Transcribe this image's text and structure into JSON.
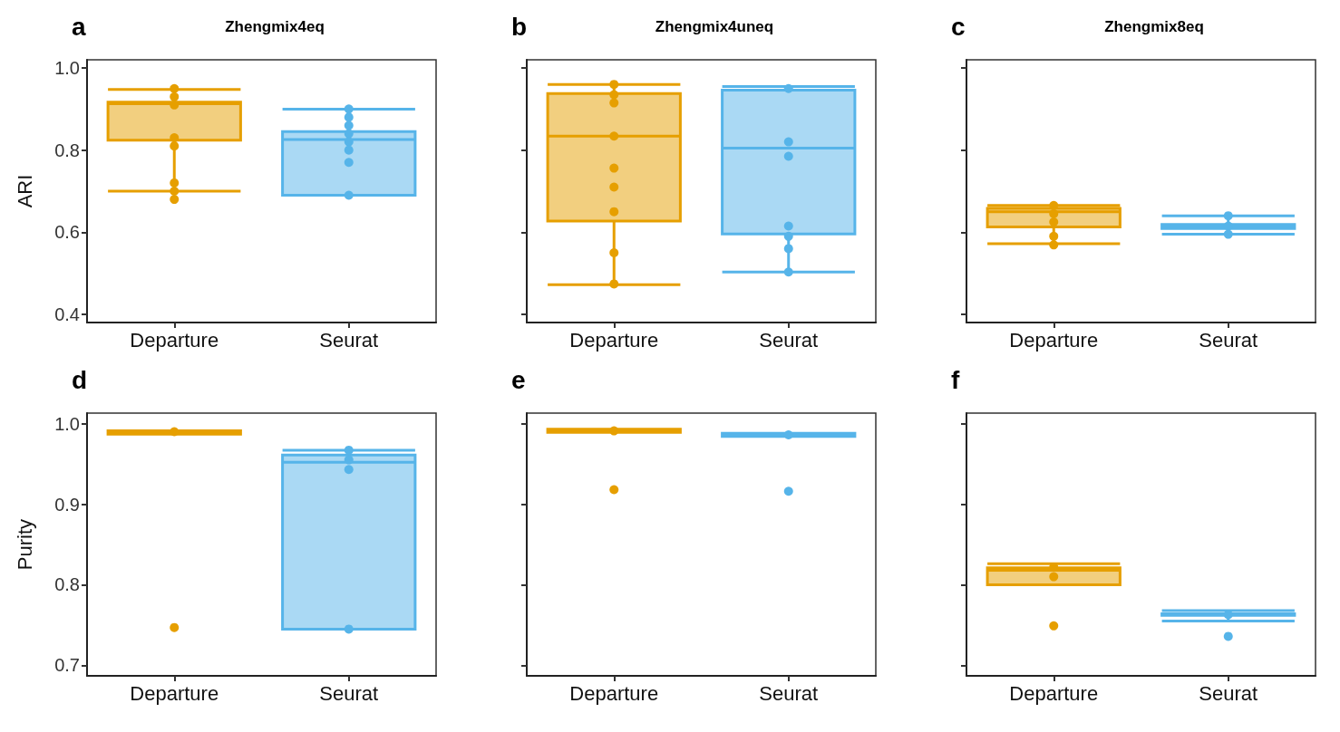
{
  "chart_data": [
    {
      "type": "box",
      "annotations": [
        "a"
      ],
      "title": "Zhengmix4eq",
      "ylabel": "ARI",
      "categories": [
        "Departure",
        "Seurat"
      ],
      "colors": [
        "#e69f00",
        "#56b4e9"
      ],
      "ylim": [
        0.38,
        1.02
      ],
      "yticks": [
        0.4,
        0.6,
        0.8,
        {
          "value": 1,
          "label": "1.0"
        }
      ],
      "boxes": [
        {
          "low": 0.7,
          "q1": 0.824,
          "median": 0.913,
          "q3": 0.917,
          "high": 0.948
        },
        {
          "low": 0.69,
          "q1": 0.69,
          "median": 0.826,
          "q3": 0.845,
          "high": 0.9
        }
      ],
      "series": [
        {
          "type": "scatter",
          "color": "#e69f00",
          "x": [
            "Departure",
            "Departure",
            "Departure",
            "Departure",
            "Departure",
            "Departure",
            "Departure",
            "Departure"
          ],
          "values": [
            0.95,
            0.93,
            0.91,
            0.83,
            0.81,
            0.72,
            0.7,
            0.68
          ]
        },
        {
          "type": "scatter",
          "color": "#56b4e9",
          "x": [
            "Seurat",
            "Seurat",
            "Seurat",
            "Seurat",
            "Seurat",
            "Seurat",
            "Seurat",
            "Seurat"
          ],
          "values": [
            0.9,
            0.88,
            0.86,
            0.84,
            0.82,
            0.8,
            0.77,
            0.69
          ]
        }
      ]
    },
    {
      "type": "box",
      "annotations": [
        "b"
      ],
      "title": "Zhengmix4uneq",
      "categories": [
        "Departure",
        "Seurat"
      ],
      "colors": [
        "#e69f00",
        "#56b4e9"
      ],
      "ylim": [
        0.38,
        1.02
      ],
      "yticks": [
        {
          "value": 0.4,
          "label": null
        },
        {
          "value": 0.6,
          "label": null
        },
        {
          "value": 0.8,
          "label": null
        },
        {
          "value": 1,
          "label": null
        }
      ],
      "tick_labels": "x",
      "boxes": [
        {
          "low": 0.472,
          "q1": 0.627,
          "median": 0.834,
          "q3": 0.938,
          "high": 0.96
        },
        {
          "low": 0.503,
          "q1": 0.596,
          "median": 0.805,
          "q3": 0.946,
          "high": 0.955
        }
      ],
      "series": [
        {
          "type": "scatter",
          "color": "#e69f00",
          "x": [
            "Departure",
            "Departure",
            "Departure",
            "Departure",
            "Departure",
            "Departure",
            "Departure",
            "Departure",
            "Departure"
          ],
          "values": [
            0.96,
            0.935,
            0.915,
            0.834,
            0.756,
            0.71,
            0.65,
            0.55,
            0.474
          ]
        },
        {
          "type": "scatter",
          "color": "#56b4e9",
          "x": [
            "Seurat",
            "Seurat",
            "Seurat",
            "Seurat",
            "Seurat",
            "Seurat",
            "Seurat"
          ],
          "values": [
            0.95,
            0.82,
            0.785,
            0.615,
            0.59,
            0.56,
            0.503
          ]
        }
      ]
    },
    {
      "type": "box",
      "annotations": [
        "c"
      ],
      "title": "Zhengmix8eq",
      "categories": [
        "Departure",
        "Seurat"
      ],
      "colors": [
        "#e69f00",
        "#56b4e9"
      ],
      "ylim": [
        0.38,
        1.02
      ],
      "yticks": [
        {
          "value": 0.4,
          "label": null
        },
        {
          "value": 0.6,
          "label": null
        },
        {
          "value": 0.8,
          "label": null
        },
        {
          "value": 1,
          "label": null
        }
      ],
      "tick_labels": "x",
      "boxes": [
        {
          "low": 0.572,
          "q1": 0.613,
          "median": 0.65,
          "q3": 0.658,
          "high": 0.665
        },
        {
          "low": 0.595,
          "q1": 0.609,
          "median": 0.613,
          "q3": 0.619,
          "high": 0.64
        }
      ],
      "series": [
        {
          "type": "scatter",
          "color": "#e69f00",
          "x": [
            "Departure",
            "Departure",
            "Departure",
            "Departure",
            "Departure"
          ],
          "values": [
            0.665,
            0.645,
            0.625,
            0.59,
            0.569
          ]
        },
        {
          "type": "scatter",
          "color": "#56b4e9",
          "x": [
            "Seurat",
            "Seurat",
            "Seurat"
          ],
          "values": [
            0.64,
            0.615,
            0.595
          ]
        }
      ]
    },
    {
      "type": "box",
      "annotations": [
        "d"
      ],
      "ylabel": "Purity",
      "categories": [
        "Departure",
        "Seurat"
      ],
      "colors": [
        "#e69f00",
        "#56b4e9"
      ],
      "ylim": [
        0.687,
        1.013
      ],
      "yticks": [
        0.7,
        0.8,
        0.9,
        {
          "value": 1,
          "label": "1.0"
        }
      ],
      "boxes": [
        {
          "low": 0.987,
          "q1": 0.987,
          "median": 0.99,
          "q3": 0.991,
          "high": 0.991
        },
        {
          "low": 0.745,
          "q1": 0.745,
          "median": 0.952,
          "q3": 0.961,
          "high": 0.967
        }
      ],
      "series": [
        {
          "type": "scatter",
          "color": "#e69f00",
          "x": [
            "Departure",
            "Departure"
          ],
          "values": [
            0.99,
            0.747
          ]
        },
        {
          "type": "scatter",
          "color": "#56b4e9",
          "x": [
            "Seurat",
            "Seurat",
            "Seurat",
            "Seurat"
          ],
          "values": [
            0.967,
            0.955,
            0.943,
            0.745
          ]
        }
      ]
    },
    {
      "type": "box",
      "annotations": [
        "e"
      ],
      "categories": [
        "Departure",
        "Seurat"
      ],
      "colors": [
        "#e69f00",
        "#56b4e9"
      ],
      "ylim": [
        0.687,
        1.013
      ],
      "yticks": [
        {
          "value": 0.7,
          "label": null
        },
        {
          "value": 0.8,
          "label": null
        },
        {
          "value": 0.9,
          "label": null
        },
        {
          "value": 1,
          "label": null
        }
      ],
      "tick_labels": "x",
      "boxes": [
        {
          "low": 0.989,
          "q1": 0.989,
          "median": 0.991,
          "q3": 0.993,
          "high": 0.993
        },
        {
          "low": 0.984,
          "q1": 0.984,
          "median": 0.986,
          "q3": 0.988,
          "high": 0.988
        }
      ],
      "series": [
        {
          "type": "scatter",
          "color": "#e69f00",
          "x": [
            "Departure",
            "Departure"
          ],
          "values": [
            0.991,
            0.918
          ]
        },
        {
          "type": "scatter",
          "color": "#56b4e9",
          "x": [
            "Seurat",
            "Seurat"
          ],
          "values": [
            0.986,
            0.916
          ]
        }
      ]
    },
    {
      "type": "box",
      "annotations": [
        "f"
      ],
      "categories": [
        "Departure",
        "Seurat"
      ],
      "colors": [
        "#e69f00",
        "#56b4e9"
      ],
      "ylim": [
        0.687,
        1.013
      ],
      "yticks": [
        {
          "value": 0.7,
          "label": null
        },
        {
          "value": 0.8,
          "label": null
        },
        {
          "value": 0.9,
          "label": null
        },
        {
          "value": 1,
          "label": null
        }
      ],
      "tick_labels": "x",
      "boxes": [
        {
          "low": 0.8,
          "q1": 0.8,
          "median": 0.818,
          "q3": 0.821,
          "high": 0.826
        },
        {
          "low": 0.755,
          "q1": 0.762,
          "median": 0.763,
          "q3": 0.764,
          "high": 0.768
        }
      ],
      "series": [
        {
          "type": "scatter",
          "color": "#e69f00",
          "x": [
            "Departure",
            "Departure",
            "Departure"
          ],
          "values": [
            0.822,
            0.81,
            0.749
          ]
        },
        {
          "type": "scatter",
          "color": "#56b4e9",
          "x": [
            "Seurat",
            "Seurat"
          ],
          "values": [
            0.763,
            0.736
          ]
        }
      ]
    }
  ]
}
